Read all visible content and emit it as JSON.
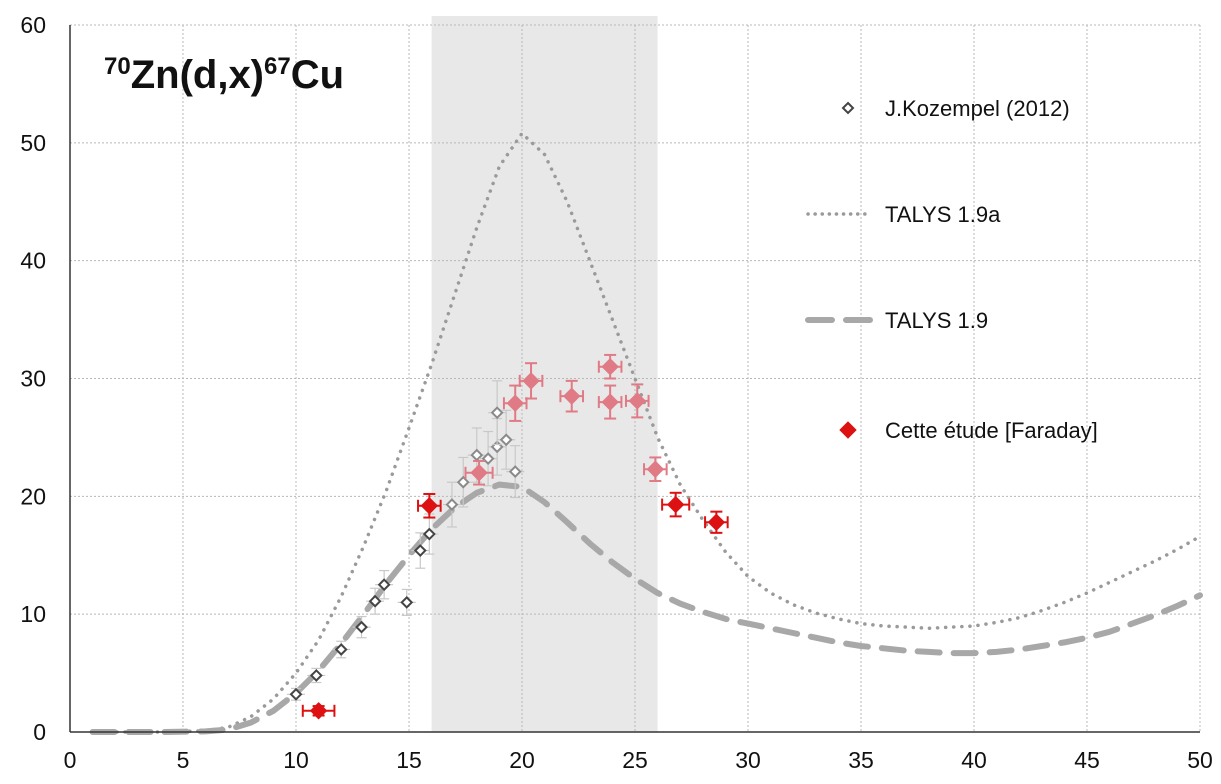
{
  "chart_data": {
    "type": "scatter",
    "title": {
      "parts": [
        {
          "text": "70",
          "sup": true
        },
        {
          "text": "Zn(d,x)",
          "sup": false
        },
        {
          "text": "67",
          "sup": true
        },
        {
          "text": "Cu",
          "sup": false
        }
      ]
    },
    "xlabel": "",
    "ylabel": "",
    "xlim": [
      0,
      50
    ],
    "ylim": [
      0,
      60
    ],
    "x_ticks": [
      0,
      5,
      10,
      15,
      20,
      25,
      30,
      35,
      40,
      45,
      50
    ],
    "y_ticks": [
      0,
      10,
      20,
      30,
      40,
      50,
      60
    ],
    "grid": true,
    "shaded_region": {
      "x_start": 16,
      "x_end": 26,
      "color": "#e8e8e8"
    },
    "legend_position": "top-right",
    "colors": {
      "kozempel": "#444444",
      "talys19a": "#9a9a9a",
      "talys19": "#a8a8a8",
      "faraday": "#dd1111",
      "faraday_faded": "#e07b85"
    },
    "series": [
      {
        "name": "J.Kozempel (2012)",
        "kind": "points",
        "marker": "open-diamond",
        "points": [
          {
            "x": 10.0,
            "y": 3.2,
            "yerr": 0.5
          },
          {
            "x": 10.9,
            "y": 4.8,
            "yerr": 0.6
          },
          {
            "x": 12.0,
            "y": 7.0,
            "yerr": 0.7
          },
          {
            "x": 12.9,
            "y": 8.9,
            "yerr": 0.9
          },
          {
            "x": 13.5,
            "y": 11.1,
            "yerr": 1.1
          },
          {
            "x": 13.9,
            "y": 12.5,
            "yerr": 1.2
          },
          {
            "x": 14.9,
            "y": 11.0,
            "yerr": 1.1
          },
          {
            "x": 15.5,
            "y": 15.4,
            "yerr": 1.5
          },
          {
            "x": 15.9,
            "y": 16.8,
            "yerr": 1.7
          },
          {
            "x": 16.9,
            "y": 19.3,
            "yerr": 1.9
          },
          {
            "x": 17.4,
            "y": 21.2,
            "yerr": 2.1
          },
          {
            "x": 18.0,
            "y": 23.5,
            "yerr": 2.3
          },
          {
            "x": 18.5,
            "y": 23.2,
            "yerr": 2.3
          },
          {
            "x": 18.9,
            "y": 24.2,
            "yerr": 2.4
          },
          {
            "x": 18.9,
            "y": 27.1,
            "yerr": 2.7
          },
          {
            "x": 19.3,
            "y": 24.8,
            "yerr": 2.5
          },
          {
            "x": 19.7,
            "y": 22.1,
            "yerr": 2.2
          }
        ]
      },
      {
        "name": "TALYS 1.9a",
        "kind": "line",
        "style": "dotted",
        "x": [
          1,
          4,
          6,
          7,
          8,
          9,
          10,
          11,
          12,
          13,
          14,
          15,
          16,
          17,
          18,
          19,
          20,
          21,
          22,
          23,
          24,
          25,
          26,
          27,
          28,
          29,
          30,
          31,
          32,
          33,
          34,
          35,
          36,
          37,
          38,
          39,
          40,
          41,
          42,
          43,
          44,
          45,
          46,
          47,
          48,
          49,
          50
        ],
        "y": [
          0,
          0,
          0.1,
          0.4,
          1.3,
          2.8,
          5.0,
          7.8,
          11.5,
          15.8,
          20.5,
          25.8,
          31.2,
          37.0,
          42.8,
          48.0,
          50.8,
          49.0,
          45.0,
          40.0,
          35.0,
          30.0,
          25.0,
          21.0,
          18.0,
          15.3,
          13.2,
          11.8,
          10.8,
          10.1,
          9.6,
          9.2,
          9.0,
          8.9,
          8.8,
          8.9,
          9.0,
          9.3,
          9.7,
          10.3,
          11.0,
          11.8,
          12.7,
          13.6,
          14.5,
          15.5,
          16.6
        ]
      },
      {
        "name": "TALYS 1.9",
        "kind": "line",
        "style": "dashed",
        "x": [
          1,
          4,
          6,
          7,
          8,
          9,
          10,
          11,
          12,
          13,
          14,
          15,
          16,
          17,
          18,
          19,
          20,
          21,
          22,
          23,
          24,
          25,
          26,
          27,
          28,
          29,
          30,
          31,
          32,
          33,
          34,
          35,
          36,
          37,
          38,
          39,
          40,
          41,
          42,
          43,
          44,
          45,
          46,
          47,
          48,
          49,
          50
        ],
        "y": [
          0,
          0,
          0.05,
          0.2,
          0.8,
          1.8,
          3.3,
          5.2,
          7.5,
          10.0,
          12.6,
          15.0,
          17.2,
          19.0,
          20.3,
          21.0,
          20.8,
          19.5,
          17.8,
          16.0,
          14.4,
          13.0,
          11.8,
          10.9,
          10.2,
          9.6,
          9.2,
          8.8,
          8.4,
          8.0,
          7.6,
          7.3,
          7.1,
          6.9,
          6.8,
          6.7,
          6.7,
          6.8,
          7.0,
          7.3,
          7.6,
          8.0,
          8.5,
          9.2,
          9.9,
          10.7,
          11.6
        ]
      },
      {
        "name": "Cette étude [Faraday]",
        "kind": "points",
        "marker": "filled-diamond",
        "points": [
          {
            "x": 11.0,
            "y": 1.8,
            "xerr": 0.7,
            "yerr": 0.4
          },
          {
            "x": 15.9,
            "y": 19.2,
            "xerr": 0.5,
            "yerr": 1.0
          },
          {
            "x": 18.1,
            "y": 22.0,
            "xerr": 0.6,
            "yerr": 1.0
          },
          {
            "x": 19.7,
            "y": 27.9,
            "xerr": 0.5,
            "yerr": 1.5
          },
          {
            "x": 20.4,
            "y": 29.8,
            "xerr": 0.5,
            "yerr": 1.5
          },
          {
            "x": 22.2,
            "y": 28.5,
            "xerr": 0.5,
            "yerr": 1.3
          },
          {
            "x": 23.9,
            "y": 31.0,
            "xerr": 0.5,
            "yerr": 1.0
          },
          {
            "x": 23.9,
            "y": 28.0,
            "xerr": 0.5,
            "yerr": 1.4
          },
          {
            "x": 25.1,
            "y": 28.1,
            "xerr": 0.5,
            "yerr": 1.4
          },
          {
            "x": 25.9,
            "y": 22.3,
            "xerr": 0.5,
            "yerr": 1.0
          },
          {
            "x": 26.8,
            "y": 19.3,
            "xerr": 0.6,
            "yerr": 1.0
          },
          {
            "x": 28.6,
            "y": 17.8,
            "xerr": 0.5,
            "yerr": 0.9
          }
        ]
      }
    ]
  }
}
